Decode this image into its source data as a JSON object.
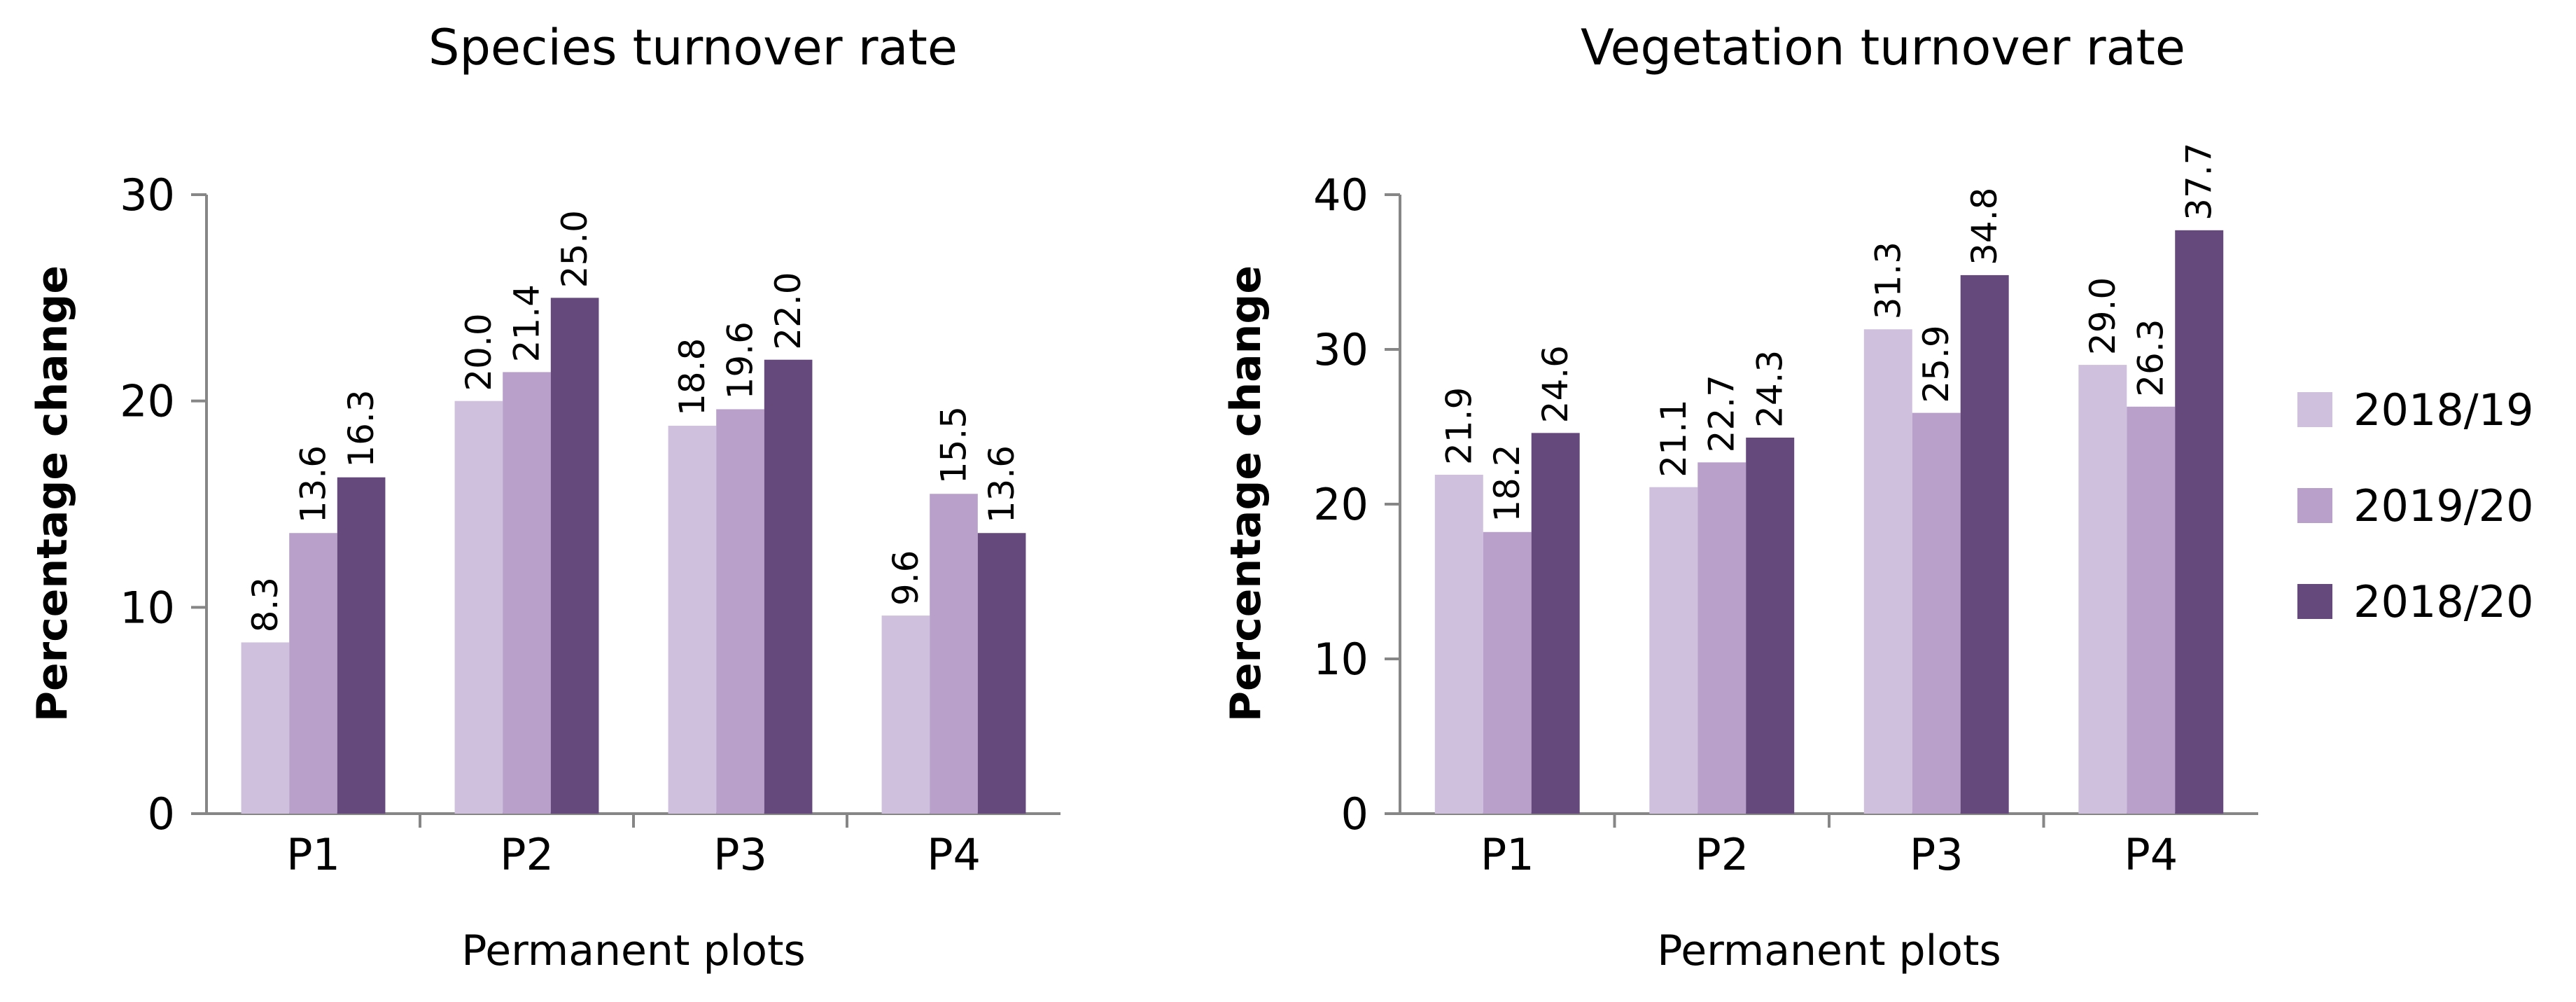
{
  "chart_data": [
    {
      "type": "bar",
      "title": "Species turnover rate",
      "xlabel": "Permanent plots",
      "ylabel": "Percentage change",
      "categories": [
        "P1",
        "P2",
        "P3",
        "P4"
      ],
      "ylim": [
        0,
        30
      ],
      "yticks": [
        "0",
        "10",
        "20",
        "30"
      ],
      "series": [
        {
          "name": "2018/19",
          "values": [
            8.3,
            20.0,
            18.8,
            9.6
          ],
          "labels": [
            "8.3",
            "20.0",
            "18.8",
            "9.6"
          ]
        },
        {
          "name": "2019/20",
          "values": [
            13.6,
            21.4,
            19.6,
            15.5
          ],
          "labels": [
            "13.6",
            "21.4",
            "19.6",
            "15.5"
          ]
        },
        {
          "name": "2018/20",
          "values": [
            16.3,
            25.0,
            22.0,
            13.6
          ],
          "labels": [
            "16.3",
            "25.0",
            "22.0",
            "13.6"
          ]
        }
      ],
      "grid": false,
      "legend": "none"
    },
    {
      "type": "bar",
      "title": "Vegetation turnover rate",
      "xlabel": "Permanent plots",
      "ylabel": "Percentage change",
      "categories": [
        "P1",
        "P2",
        "P3",
        "P4"
      ],
      "ylim": [
        0,
        40
      ],
      "yticks": [
        "0",
        "10",
        "20",
        "30",
        "40"
      ],
      "series": [
        {
          "name": "2018/19",
          "values": [
            21.9,
            21.1,
            31.3,
            29.0
          ],
          "labels": [
            "21.9",
            "21.1",
            "31.3",
            "29.0"
          ]
        },
        {
          "name": "2019/20",
          "values": [
            18.2,
            22.7,
            25.9,
            26.3
          ],
          "labels": [
            "18.2",
            "22.7",
            "25.9",
            "26.3"
          ]
        },
        {
          "name": "2018/20",
          "values": [
            24.6,
            24.3,
            34.8,
            37.7
          ],
          "labels": [
            "24.6",
            "24.3",
            "34.8",
            "37.7"
          ]
        }
      ],
      "grid": false,
      "legend": "right"
    }
  ],
  "legend": {
    "items": [
      {
        "label": "2018/19",
        "color": "#CFC0DD"
      },
      {
        "label": "2019/20",
        "color": "#B9A0CB"
      },
      {
        "label": "2018/20",
        "color": "#65497D"
      }
    ]
  }
}
